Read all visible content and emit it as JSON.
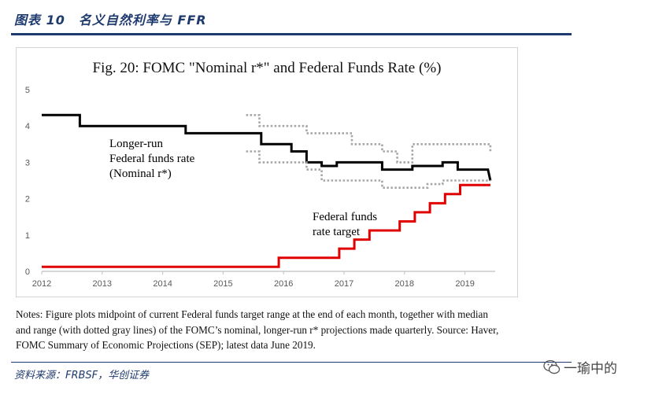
{
  "header": {
    "report_title": "图表 10　名义自然利率与 FFR"
  },
  "chart_data": {
    "type": "line",
    "title": "Fig. 20: FOMC \"Nominal r*\" and Federal Funds Rate (%)",
    "xlabel": "",
    "ylabel": "",
    "xlim": [
      2012,
      2019.5
    ],
    "ylim": [
      0,
      5
    ],
    "x_ticks": [
      "2012",
      "2013",
      "2014",
      "2015",
      "2016",
      "2017",
      "2018",
      "2019"
    ],
    "y_ticks": [
      "0",
      "1",
      "2",
      "3",
      "4",
      "5"
    ],
    "grid": false,
    "series": [
      {
        "name": "Longer-run Federal funds rate (Nominal r*)",
        "style": "solid",
        "color": "#000000",
        "points": [
          [
            2012.0,
            4.3
          ],
          [
            2012.63,
            4.3
          ],
          [
            2012.63,
            4.0
          ],
          [
            2014.38,
            4.0
          ],
          [
            2014.38,
            3.8
          ],
          [
            2015.63,
            3.8
          ],
          [
            2015.63,
            3.5
          ],
          [
            2016.13,
            3.5
          ],
          [
            2016.13,
            3.3
          ],
          [
            2016.38,
            3.3
          ],
          [
            2016.38,
            3.0
          ],
          [
            2016.63,
            3.0
          ],
          [
            2016.63,
            2.9
          ],
          [
            2016.88,
            2.9
          ],
          [
            2016.88,
            3.0
          ],
          [
            2017.63,
            3.0
          ],
          [
            2017.63,
            2.8
          ],
          [
            2018.13,
            2.8
          ],
          [
            2018.13,
            2.9
          ],
          [
            2018.63,
            2.9
          ],
          [
            2018.63,
            3.0
          ],
          [
            2018.88,
            3.0
          ],
          [
            2018.88,
            2.8
          ],
          [
            2019.38,
            2.8
          ],
          [
            2019.42,
            2.5
          ]
        ]
      },
      {
        "name": "",
        "style": "dotted",
        "color": "#a6a6a6",
        "points": [
          [
            2015.38,
            4.3
          ],
          [
            2015.6,
            4.3
          ],
          [
            2015.6,
            4.0
          ],
          [
            2016.38,
            4.0
          ],
          [
            2016.38,
            3.8
          ],
          [
            2017.13,
            3.8
          ],
          [
            2017.13,
            3.5
          ],
          [
            2017.63,
            3.5
          ],
          [
            2017.63,
            3.3
          ],
          [
            2017.88,
            3.3
          ],
          [
            2017.88,
            3.0
          ],
          [
            2018.13,
            3.0
          ],
          [
            2018.13,
            3.5
          ],
          [
            2019.42,
            3.5
          ],
          [
            2019.42,
            3.3
          ]
        ]
      },
      {
        "name": "",
        "style": "dotted",
        "color": "#a6a6a6",
        "points": [
          [
            2015.38,
            3.3
          ],
          [
            2015.6,
            3.3
          ],
          [
            2015.6,
            3.0
          ],
          [
            2016.38,
            3.0
          ],
          [
            2016.38,
            2.8
          ],
          [
            2016.63,
            2.8
          ],
          [
            2016.63,
            2.5
          ],
          [
            2017.63,
            2.5
          ],
          [
            2017.63,
            2.3
          ],
          [
            2018.38,
            2.3
          ],
          [
            2018.38,
            2.4
          ],
          [
            2018.63,
            2.4
          ],
          [
            2018.63,
            2.5
          ],
          [
            2019.42,
            2.5
          ]
        ]
      },
      {
        "name": "Federal funds rate target",
        "style": "solid",
        "color": "#e00000",
        "points": [
          [
            2012.0,
            0.125
          ],
          [
            2015.92,
            0.125
          ],
          [
            2015.92,
            0.375
          ],
          [
            2016.92,
            0.375
          ],
          [
            2016.92,
            0.625
          ],
          [
            2017.17,
            0.625
          ],
          [
            2017.17,
            0.875
          ],
          [
            2017.42,
            0.875
          ],
          [
            2017.42,
            1.125
          ],
          [
            2017.92,
            1.125
          ],
          [
            2017.92,
            1.375
          ],
          [
            2018.17,
            1.375
          ],
          [
            2018.17,
            1.625
          ],
          [
            2018.42,
            1.625
          ],
          [
            2018.42,
            1.875
          ],
          [
            2018.67,
            1.875
          ],
          [
            2018.67,
            2.125
          ],
          [
            2018.92,
            2.125
          ],
          [
            2018.92,
            2.375
          ],
          [
            2019.42,
            2.375
          ]
        ]
      }
    ],
    "annotations": {
      "longer_run_label": [
        "Longer-run",
        "Federal funds rate",
        "(Nominal r*)"
      ],
      "ffr_label": [
        "Federal funds",
        "rate target"
      ]
    }
  },
  "notes": [
    "Notes: Figure plots midpoint of current Federal funds target range at the end of each month, together with median",
    "and range (with dotted gray lines) of the FOMC’s nominal, longer-run r* projections made quarterly. Source: Haver,",
    "FOMC Summary of Economic Projections (SEP); latest data June 2019."
  ],
  "footer": {
    "source": "资料来源：FRBSF，华创证券",
    "watermark": "一瑜中的"
  },
  "colors": {
    "brand_blue": "#1f3a6e",
    "axis": "#bfbfbf",
    "tick_text": "#595959"
  }
}
